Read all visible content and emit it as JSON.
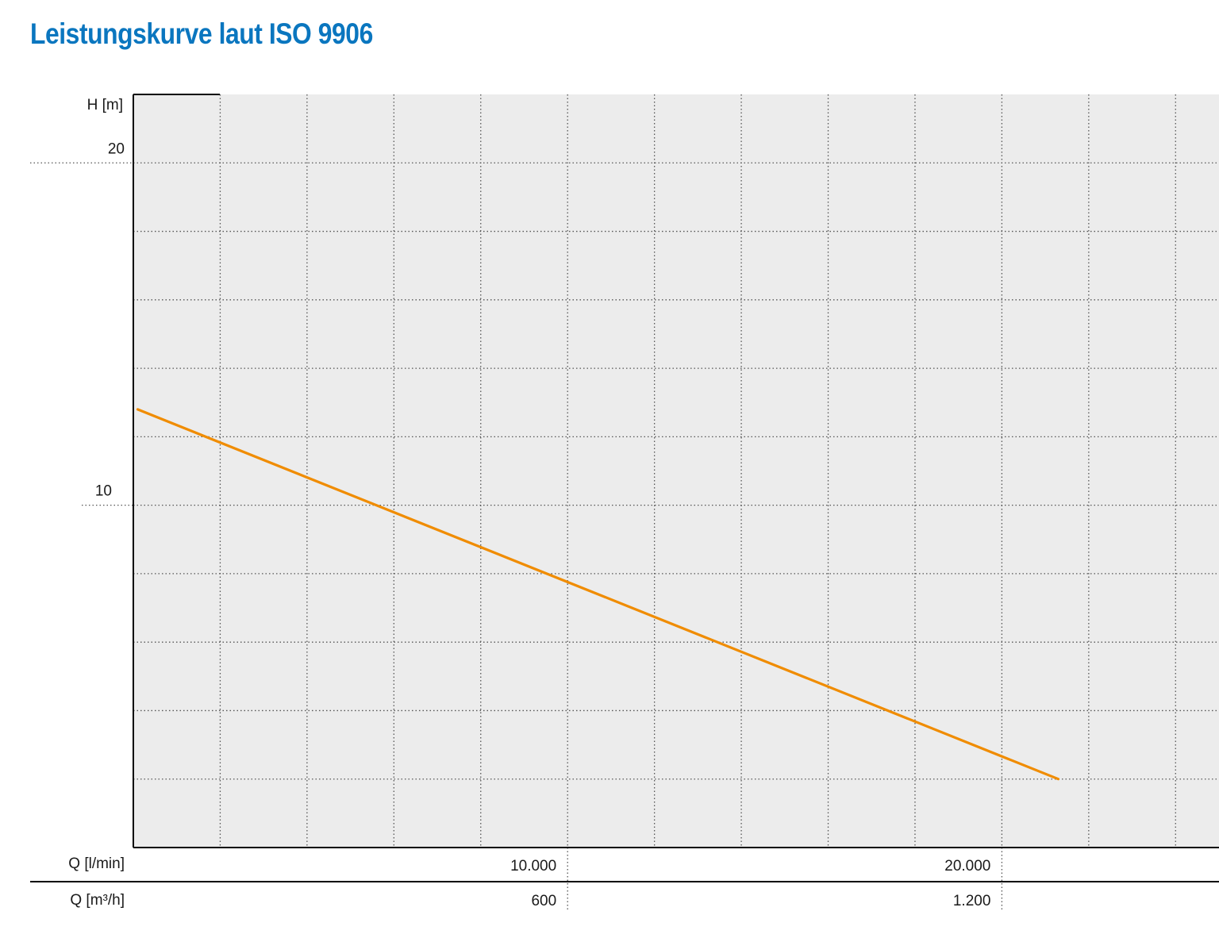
{
  "title": "Leistungskurve laut ISO 9906",
  "colors": {
    "title": "#0a76bf",
    "curve": "#f08c00",
    "plot_background": "#ececec",
    "grid": "#555555",
    "axis": "#000000"
  },
  "chart_data": {
    "type": "line",
    "title": "Leistungskurve laut ISO 9906",
    "ylabel": "H [m]",
    "xlabel": "Q [l/min]",
    "xlabel_secondary": "Q [m³/h]",
    "xlim": [
      0,
      25000
    ],
    "ylim": [
      0,
      22
    ],
    "x_ticks": [
      {
        "value": 10000,
        "label": "10.000"
      },
      {
        "value": 20000,
        "label": "20.000"
      }
    ],
    "x_ticks_secondary": [
      {
        "value": 10000,
        "label": "600"
      },
      {
        "value": 20000,
        "label": "1.200"
      }
    ],
    "y_ticks": [
      {
        "value": 20,
        "label": "20"
      },
      {
        "value": 10,
        "label": "10"
      }
    ],
    "grid": true,
    "x_grid_step": 2000,
    "y_grid_step": 2,
    "series": [
      {
        "x": [
          100,
          21300
        ],
        "y": [
          12.8,
          2.0
        ]
      }
    ]
  }
}
